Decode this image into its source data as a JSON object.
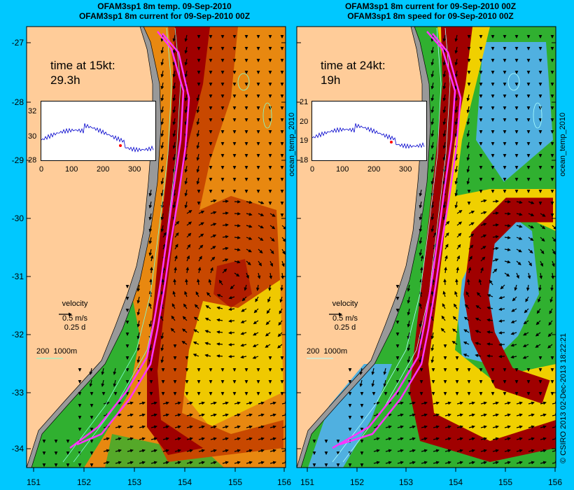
{
  "left_panel": {
    "title_line1": "OFAM3sp1 8m temp. 09-Sep-2010",
    "title_line2": "OFAM3sp1 8m current for 09-Sep-2010 00Z",
    "time_label_line1": "time at 15kt:",
    "time_label_line2": "29.3h",
    "side_label": "ocean_temp_2010",
    "inset_yticks": [
      "32",
      "30",
      "28"
    ],
    "inset_xticks": [
      "0",
      "100",
      "200",
      "300"
    ],
    "colors": {
      "hot": "#a00000",
      "warm": "#c84800",
      "orange": "#e88810",
      "yellow": "#f0d000",
      "green": "#30b030"
    }
  },
  "right_panel": {
    "title_line1": "OFAM3sp1 8m current for 09-Sep-2010 00Z",
    "title_line2": "OFAM3sp1 8m speed for 09-Sep-2010 00Z",
    "time_label_line1": "time at 24kt:",
    "time_label_line2": "19h",
    "side_label": "ocean_temp_2010",
    "inset_yticks": [
      "21",
      "20",
      "19",
      "18"
    ],
    "inset_xticks": [
      "0",
      "100",
      "200",
      "300"
    ],
    "colors": {
      "fast": "#a00000",
      "mid": "#f0d000",
      "slow": "#50b0e0",
      "calm": "#30b030"
    }
  },
  "velocity_legend": {
    "title": "velocity",
    "speed": "0.5 m/s",
    "duration": "0.25 d"
  },
  "depth_legend": {
    "shallow": "200",
    "deep": "1000m"
  },
  "y_axis": {
    "ticks": [
      "-27",
      "-28",
      "-29",
      "-30",
      "-31",
      "-32",
      "-33",
      "-34"
    ]
  },
  "x_axis": {
    "ticks": [
      "151",
      "152",
      "153",
      "154",
      "155",
      "156"
    ]
  },
  "credit": "© CSIRO 2013   02-Dec-2013 18:22:21",
  "land_color": "#ffcc99",
  "route_color": "#ff33ff"
}
